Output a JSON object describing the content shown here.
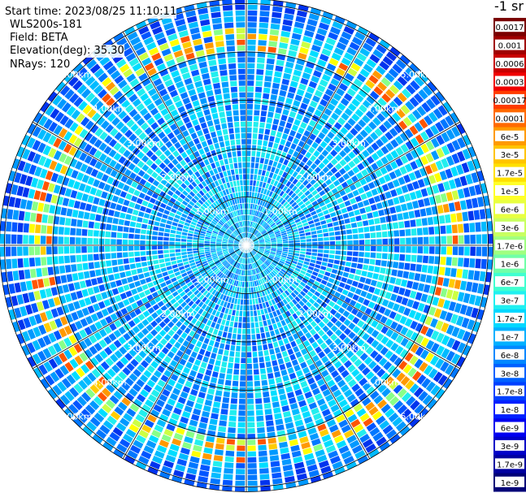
{
  "header": {
    "start_time": "Start time: 2023/08/25 11:10:11",
    "instrument": "WLS200s-181",
    "field": "Field: BETA",
    "elevation": "Elevation(deg): 35.30",
    "nrays": "NRays: 120"
  },
  "colorbar": {
    "unit_label": "-1 sr",
    "ticks": [
      "0.0017",
      "0.001",
      "0.0006",
      "0.0003",
      "0.00017",
      "0.0001",
      "6e-5",
      "3e-5",
      "1.7e-5",
      "1e-5",
      "6e-6",
      "3e-6",
      "1.7e-6",
      "1e-6",
      "6e-7",
      "3e-7",
      "1.7e-7",
      "1e-7",
      "6e-8",
      "3e-8",
      "1.7e-8",
      "1e-8",
      "6e-9",
      "3e-9",
      "1.7e-9",
      "1e-9"
    ],
    "colors": [
      "#7a0000",
      "#a00000",
      "#c80000",
      "#f00000",
      "#ff3c00",
      "#ff6a00",
      "#ff9a00",
      "#ffc400",
      "#ffe000",
      "#ffff28",
      "#e8ff40",
      "#c8ff60",
      "#a0ff80",
      "#70ffa8",
      "#40ffd0",
      "#20f0f0",
      "#00d8ff",
      "#00b0ff",
      "#0088ff",
      "#0060ff",
      "#0040ff",
      "#0020ff",
      "#0000f0",
      "#0000c8",
      "#0000a0",
      "#000078"
    ],
    "dark_label_colors": [
      "#7a0000",
      "#a00000",
      "#c80000",
      "#f00000",
      "#000078",
      "#0000a0",
      "#0000c8",
      "#0000f0",
      "#0020ff",
      "#0040ff",
      "#0060ff",
      "#0088ff"
    ]
  },
  "chart_data": {
    "type": "heatmap",
    "projection": "polar PPI scan",
    "rays": 120,
    "range_rings_km": [
      1,
      2,
      3,
      4,
      5
    ],
    "ring_labels": [
      "1.00km",
      "2.00km",
      "3.00km",
      "4.00km",
      "5.00km"
    ],
    "max_range_km": 5.1,
    "spokes_deg": [
      0,
      30,
      60,
      90,
      120,
      150,
      180,
      210,
      240,
      270,
      300,
      330
    ],
    "value_description": "attenuated backscatter (sr-1), mostly 1e-7 to 1e-6 with an enhanced ring of 1e-5 to 1e-4 near 4.0-4.5 km",
    "enhanced_ring_km": [
      4.0,
      4.5
    ],
    "enhanced_ring_level": "3e-5",
    "background_level": "3e-7",
    "near_range_level": "6e-8"
  }
}
